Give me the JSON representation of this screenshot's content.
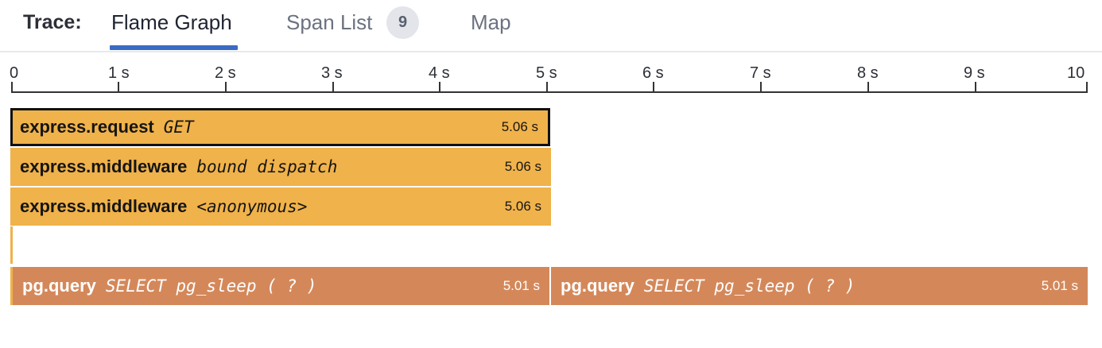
{
  "header": {
    "trace_label": "Trace:",
    "tabs": [
      {
        "label": "Flame Graph",
        "active": true
      },
      {
        "label": "Span List",
        "badge": "9"
      },
      {
        "label": "Map"
      }
    ]
  },
  "axis": {
    "ticks": [
      "0",
      "1 s",
      "2 s",
      "3 s",
      "4 s",
      "5 s",
      "6 s",
      "7 s",
      "8 s",
      "9 s",
      "10"
    ]
  },
  "spans": [
    {
      "name": "express.request",
      "resource": "GET",
      "duration": "5.06 s",
      "selected": true
    },
    {
      "name": "express.middleware",
      "resource": "bound dispatch",
      "duration": "5.06 s"
    },
    {
      "name": "express.middleware",
      "resource": "<anonymous>",
      "duration": "5.06 s"
    },
    {
      "name": "pg.query",
      "resource": "SELECT pg_sleep ( ? )",
      "duration": "5.01 s"
    },
    {
      "name": "pg.query",
      "resource": "SELECT pg_sleep ( ? )",
      "duration": "5.01 s"
    }
  ],
  "colors": {
    "express": "#f0b24a",
    "pg": "#d4885a",
    "active_tab": "#3a6bc4"
  }
}
